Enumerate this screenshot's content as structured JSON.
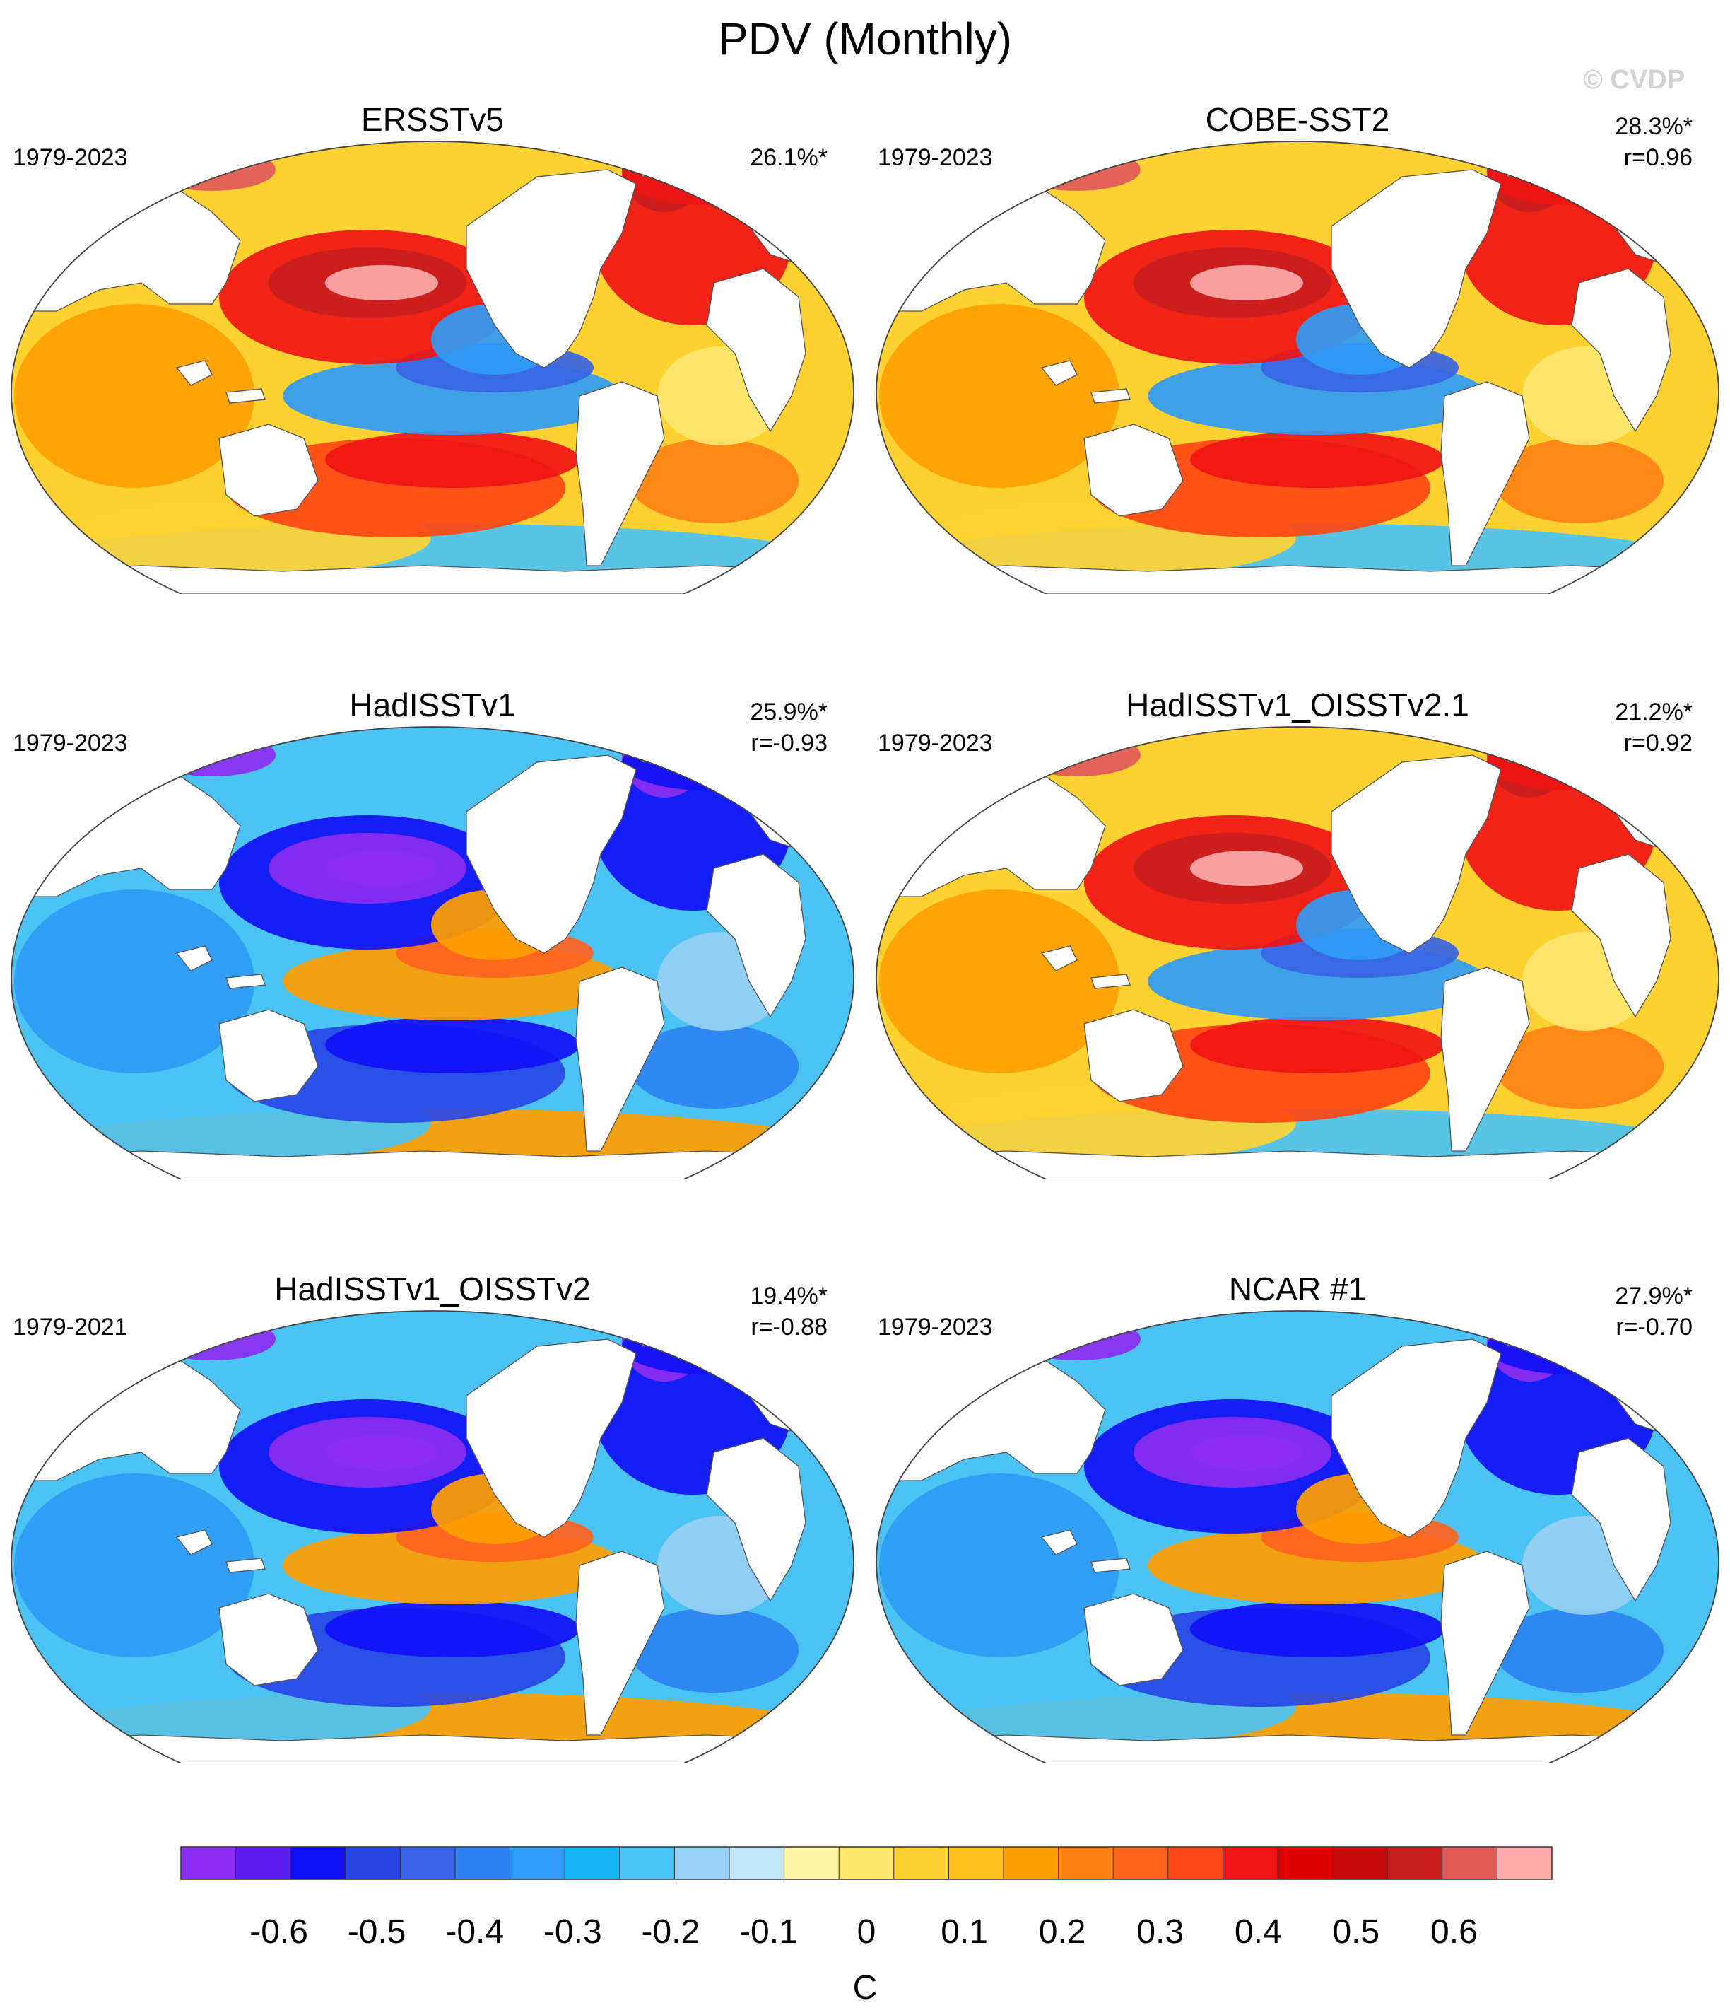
{
  "title": "PDV (Monthly)",
  "watermark": "© CVDP",
  "panels": [
    {
      "title": "ERSSTv5",
      "period": "1979-2023",
      "pct": "26.1%*",
      "r": "",
      "sign": 1,
      "pos": "top-left"
    },
    {
      "title": "COBE-SST2",
      "period": "1979-2023",
      "pct": "28.3%*",
      "r": "r=0.96",
      "sign": 1,
      "pos": "top-right"
    },
    {
      "title": "HadISSTv1",
      "period": "1979-2023",
      "pct": "25.9%*",
      "r": "r=-0.93",
      "sign": -1,
      "pos": "middle-left"
    },
    {
      "title": "HadISSTv1_OISSTv2.1",
      "period": "1979-2023",
      "pct": "21.2%*",
      "r": "r=0.92",
      "sign": 1,
      "pos": "middle-right"
    },
    {
      "title": "HadISSTv1_OISSTv2",
      "period": "1979-2021",
      "pct": "19.4%*",
      "r": "r=-0.88",
      "sign": -1,
      "pos": "bottom-left"
    },
    {
      "title": "NCAR #1",
      "period": "1979-2023",
      "pct": "27.9%*",
      "r": "r=-0.70",
      "sign": -1,
      "pos": "bottom-right"
    }
  ],
  "colorbar": {
    "unit": "C",
    "tick_labels": [
      "-0.6",
      "-0.5",
      "-0.4",
      "-0.3",
      "-0.2",
      "-0.1",
      "0",
      "0.1",
      "0.2",
      "0.3",
      "0.4",
      "0.5",
      "0.6"
    ],
    "tick_values": [
      -0.6,
      -0.5,
      -0.4,
      -0.3,
      -0.2,
      -0.1,
      0,
      0.1,
      0.2,
      0.3,
      0.4,
      0.5,
      0.6
    ],
    "levels_min": -0.7,
    "levels_max": 0.7,
    "level_step": 0.05,
    "colors": [
      "#8c2ef0",
      "#5a1ef0",
      "#1010f5",
      "#2846e6",
      "#3a64e6",
      "#2d82f0",
      "#2f9bf5",
      "#14b4f5",
      "#4bc3f5",
      "#96d0f2",
      "#c3e6f5",
      "#fff6a5",
      "#ffe66e",
      "#ffd232",
      "#ffbe1e",
      "#ffa000",
      "#ff8214",
      "#ff641e",
      "#ff4614",
      "#f01414",
      "#e10000",
      "#c80a0a",
      "#c81e1e",
      "#e15a5a",
      "#ffaaaa"
    ]
  }
}
